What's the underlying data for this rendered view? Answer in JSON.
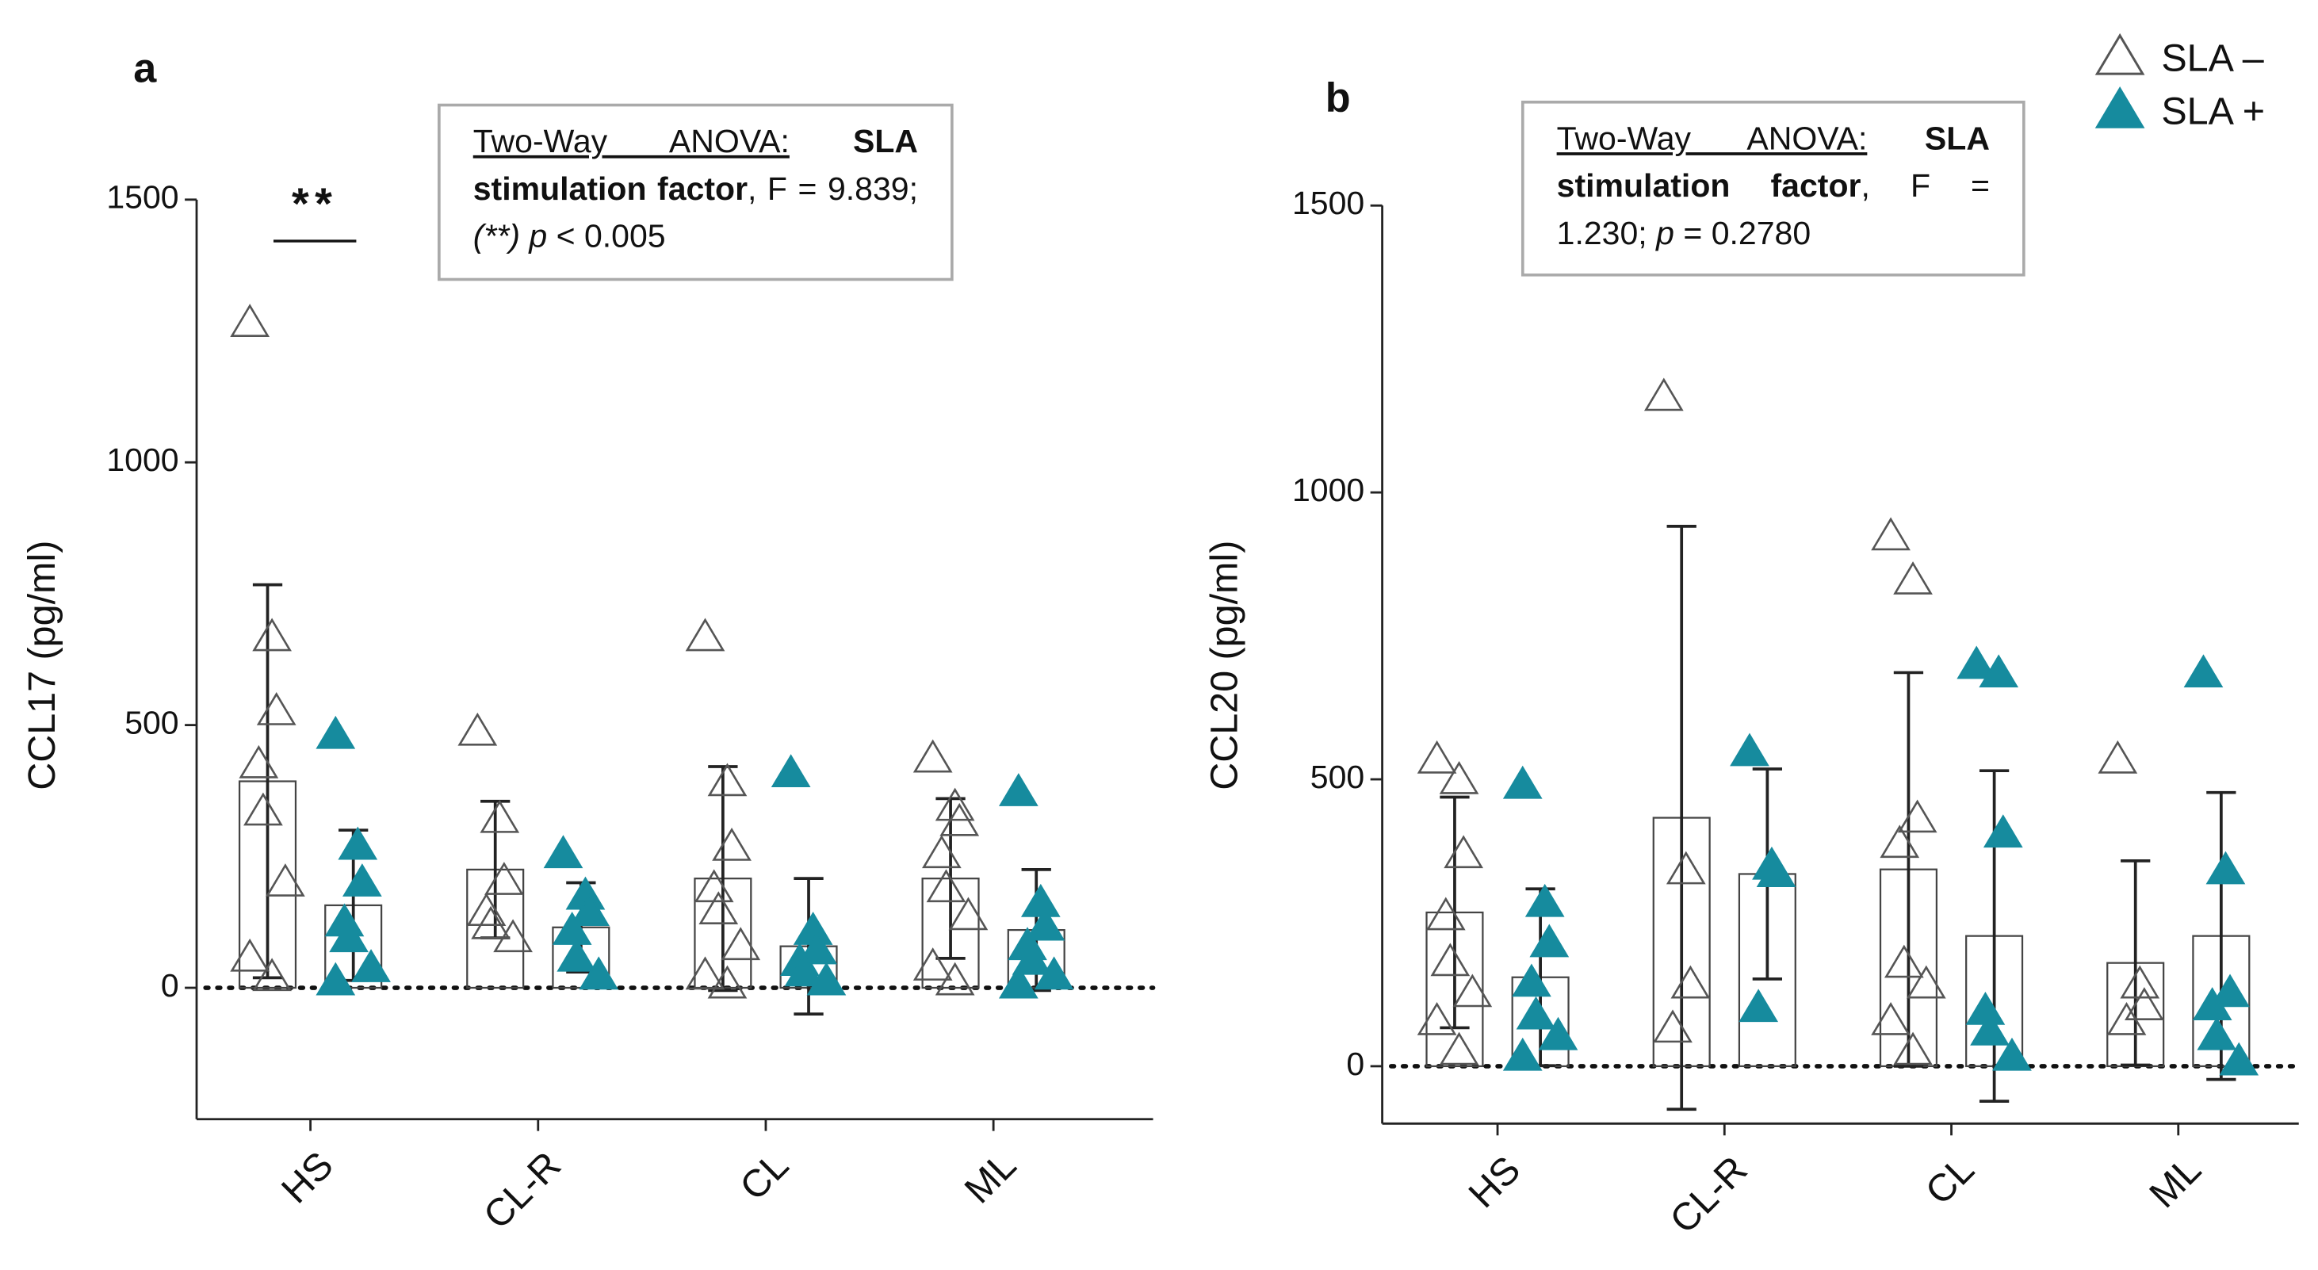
{
  "chart_data": [
    {
      "type": "bar",
      "panel": "a",
      "ylabel": "CCL17 (pg/ml)",
      "categories": [
        "HS",
        "CL-R",
        "CL",
        "ML"
      ],
      "ylim": [
        -250,
        1500
      ],
      "yticks": [
        0,
        500,
        1000,
        1500
      ],
      "hline": 0,
      "significance": "**",
      "legend": "top-right",
      "annotation": [
        {
          "text": "Two-Way ANOVA:",
          "style": "underline"
        },
        {
          "text": " SLA stimulation factor",
          "style": "bold"
        },
        {
          "text": ", F = 9.839; "
        },
        {
          "text": "(**) p",
          "style": "italic"
        },
        {
          "text": " < 0.005"
        }
      ],
      "series": [
        {
          "name": "SLA –",
          "color": "#555555",
          "fill": "none",
          "values": [
            393,
            225,
            208,
            208
          ],
          "errors": [
            374,
            130,
            213,
            152
          ],
          "points": [
            [
              1267,
              669,
              528,
              427,
              337,
              202,
              59,
              22
            ],
            [
              489,
              323,
              205,
              146,
              121,
              96
            ],
            [
              669,
              393,
              270,
              191,
              149,
              81,
              25,
              8
            ],
            [
              438,
              346,
              317,
              256,
              191,
              138,
              42,
              14
            ]
          ]
        },
        {
          "name": "SLA +",
          "color": "#168b9e",
          "fill": "#168b9e",
          "values": [
            157,
            115,
            79,
            110
          ],
          "errors": [
            143,
            85,
            129,
            115
          ],
          "points": [
            [
              483,
              272,
              202,
              126,
              96,
              39,
              14
            ],
            [
              256,
              177,
              146,
              110,
              59,
              25
            ],
            [
              410,
              110,
              73,
              51,
              31,
              14
            ],
            [
              374,
              163,
              118,
              81,
              53,
              25,
              8
            ]
          ]
        }
      ]
    },
    {
      "type": "bar",
      "panel": "b",
      "ylabel": "CCL20 (pg/ml)",
      "categories": [
        "HS",
        "CL-R",
        "CL",
        "ML"
      ],
      "ylim": [
        -100,
        1500
      ],
      "yticks": [
        0,
        500,
        1000,
        1500
      ],
      "hline": 0,
      "annotation": [
        {
          "text": "Two-Way ANOVA:",
          "style": "underline"
        },
        {
          "text": " SLA stimulation factor",
          "style": "bold"
        },
        {
          "text": ", F = 1.230; "
        },
        {
          "text": "p",
          "style": "italic"
        },
        {
          "text": " = 0.2780"
        }
      ],
      "series": [
        {
          "color": "#555555",
          "fill": "none",
          "values": [
            268,
            433,
            343,
            180
          ],
          "errors": [
            201,
            508,
            343,
            178
          ],
          "points": [
            [
              536,
              500,
              371,
              263,
              183,
              129,
              80,
              28
            ],
            [
              1168,
              343,
              144,
              67
            ],
            [
              925,
              848,
              433,
              389,
              180,
              144,
              80,
              28
            ],
            [
              536,
              144,
              106,
              80
            ]
          ]
        },
        {
          "color": "#168b9e",
          "fill": "#168b9e",
          "values": [
            155,
            335,
            227,
            227
          ],
          "errors": [
            154,
            183,
            288,
            250
          ],
          "points": [
            [
              492,
              286,
              216,
              147,
              90,
              54,
              18
            ],
            [
              549,
              351,
              338,
              103
            ],
            [
              701,
              686,
              407,
              98,
              62,
              18
            ],
            [
              686,
              343,
              129,
              106,
              54,
              10
            ]
          ]
        }
      ]
    }
  ]
}
